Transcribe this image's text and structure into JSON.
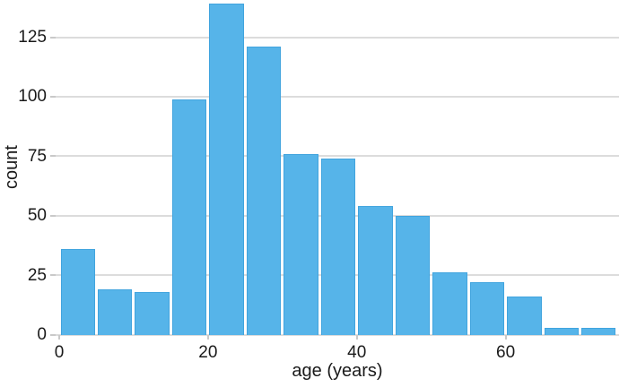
{
  "figure": {
    "background_color": "#ffffff"
  },
  "chart_data": {
    "type": "bar",
    "subtype": "histogram",
    "title": "",
    "xlabel": "age (years)",
    "ylabel": "count",
    "bin_width": 5,
    "bin_edges": [
      0,
      5,
      10,
      15,
      20,
      25,
      30,
      35,
      40,
      45,
      50,
      55,
      60,
      65,
      70,
      75
    ],
    "categories": [
      "0-5",
      "5-10",
      "10-15",
      "15-20",
      "20-25",
      "25-30",
      "30-35",
      "35-40",
      "40-45",
      "45-50",
      "50-55",
      "55-60",
      "60-65",
      "65-70",
      "70-75"
    ],
    "values": [
      36,
      19,
      18,
      99,
      139,
      121,
      76,
      74,
      54,
      50,
      26,
      22,
      16,
      3,
      3
    ],
    "x_ticks": [
      0,
      20,
      40,
      60
    ],
    "y_ticks": [
      0,
      25,
      50,
      75,
      100,
      125
    ],
    "xlim": [
      0,
      75
    ],
    "ylim": [
      0,
      140
    ],
    "grid": "horizontal",
    "legend": "none",
    "colors": {
      "bar_fill": "#56b4e9",
      "bar_border": "#41a4de",
      "gridline": "#dcdcdc",
      "tick_mark": "#c9c9c9",
      "text": "#1a1a1a"
    }
  }
}
